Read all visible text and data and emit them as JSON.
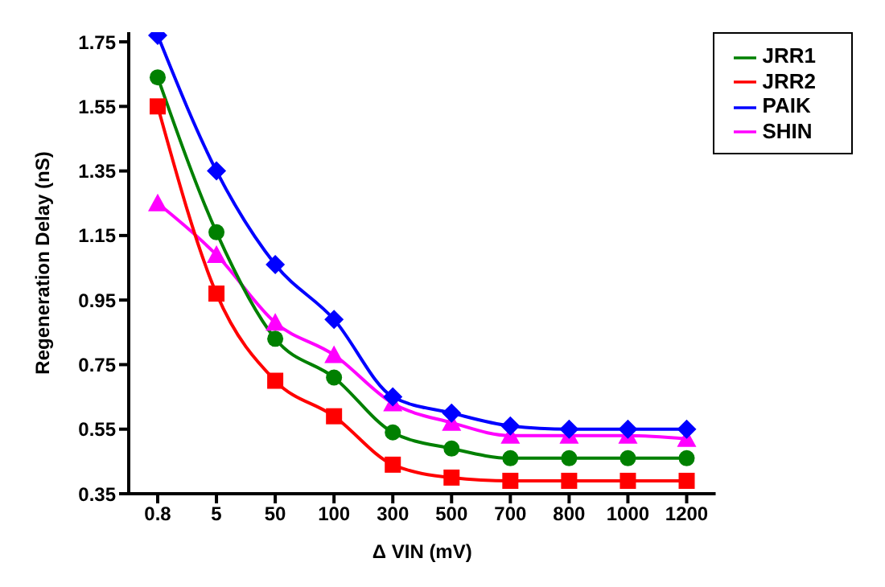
{
  "chart_data": {
    "type": "line",
    "xlabel": "Δ VIN (mV)",
    "ylabel": "Regeneration Delay (nS)",
    "categories": [
      "0.8",
      "5",
      "50",
      "100",
      "300",
      "500",
      "700",
      "800",
      "1000",
      "1200"
    ],
    "ylim": [
      0.35,
      1.78
    ],
    "yticks": [
      {
        "value": 0.35,
        "label": "0.35"
      },
      {
        "value": 0.55,
        "label": "0.55"
      },
      {
        "value": 0.75,
        "label": "0.75"
      },
      {
        "value": 0.95,
        "label": "0.95"
      },
      {
        "value": 1.15,
        "label": "1.15"
      },
      {
        "value": 1.35,
        "label": "1.35"
      },
      {
        "value": 1.55,
        "label": "1.55"
      },
      {
        "value": 1.75,
        "label": "1.75"
      }
    ],
    "grid": false,
    "legend": "top right",
    "series": [
      {
        "name": "SHIN",
        "color": "#ff00ff",
        "marker": "triangle",
        "values": [
          1.25,
          1.09,
          0.88,
          0.78,
          0.63,
          0.57,
          0.53,
          0.53,
          0.53,
          0.52
        ]
      },
      {
        "name": "PAIK",
        "color": "#0000ff",
        "marker": "diamond",
        "values": [
          1.77,
          1.35,
          1.06,
          0.89,
          0.65,
          0.6,
          0.56,
          0.55,
          0.55,
          0.55
        ]
      },
      {
        "name": "JRR1",
        "color": "#008000",
        "marker": "circle",
        "values": [
          1.64,
          1.16,
          0.83,
          0.71,
          0.54,
          0.49,
          0.46,
          0.46,
          0.46,
          0.46
        ]
      },
      {
        "name": "JRR2",
        "color": "#ff0000",
        "marker": "square",
        "values": [
          1.55,
          0.97,
          0.7,
          0.59,
          0.44,
          0.4,
          0.39,
          0.39,
          0.39,
          0.39
        ]
      }
    ]
  }
}
